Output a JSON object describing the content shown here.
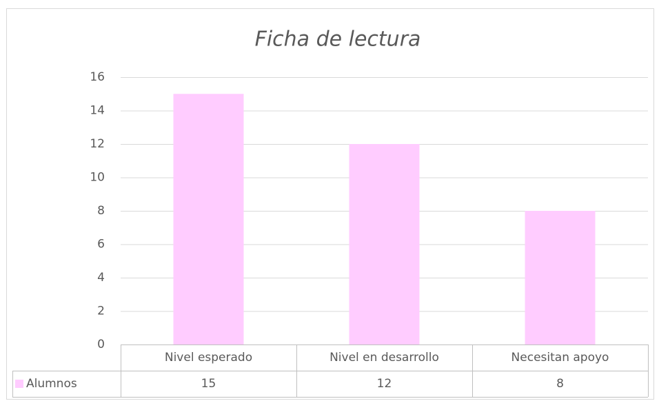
{
  "chart_data": {
    "type": "bar",
    "title": "Ficha de lectura",
    "categories": [
      "Nivel esperado",
      "Nivel en desarrollo",
      "Necesitan apoyo"
    ],
    "series": [
      {
        "name": "Alumnos",
        "color": "#ffccff",
        "values": [
          15,
          12,
          8
        ]
      }
    ],
    "ylim": [
      0,
      16
    ],
    "yticks": [
      0,
      2,
      4,
      6,
      8,
      10,
      12,
      14,
      16
    ],
    "grid": true,
    "data_table": true
  }
}
